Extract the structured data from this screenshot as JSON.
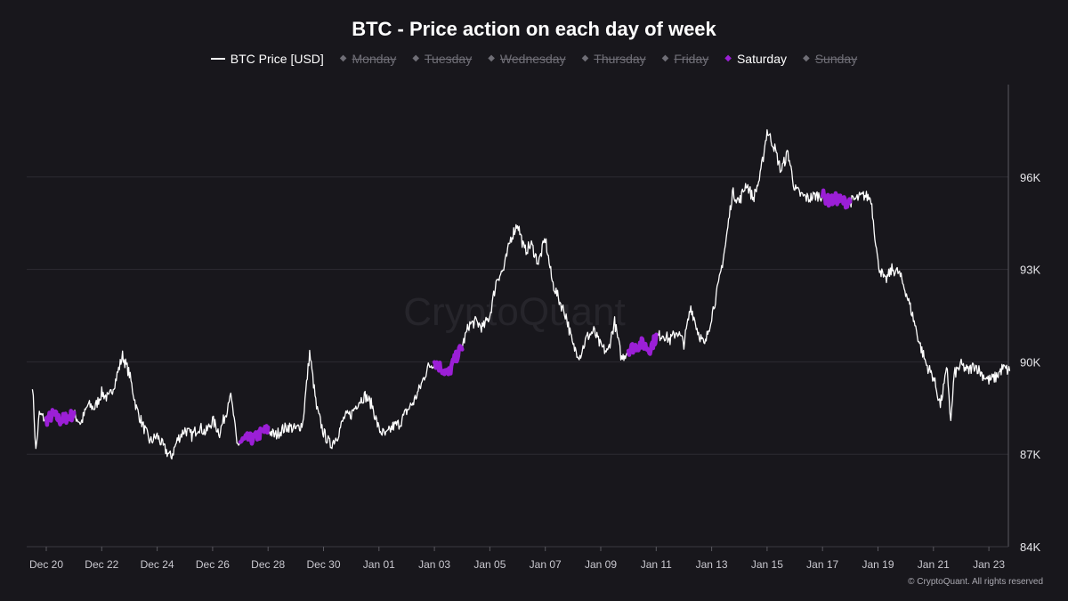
{
  "chart_data": {
    "type": "line",
    "title": "BTC - Price action on each day of week",
    "legend": [
      {
        "name": "BTC Price [USD]",
        "marker": "line",
        "color": "#ffffff",
        "active": true
      },
      {
        "name": "Monday",
        "marker": "dot",
        "color": "#6f6e76",
        "active": false
      },
      {
        "name": "Tuesday",
        "marker": "dot",
        "color": "#6f6e76",
        "active": false
      },
      {
        "name": "Wednesday",
        "marker": "dot",
        "color": "#6f6e76",
        "active": false
      },
      {
        "name": "Thursday",
        "marker": "dot",
        "color": "#6f6e76",
        "active": false
      },
      {
        "name": "Friday",
        "marker": "dot",
        "color": "#6f6e76",
        "active": false
      },
      {
        "name": "Saturday",
        "marker": "dot",
        "color": "#9b1fd6",
        "active": true
      },
      {
        "name": "Sunday",
        "marker": "dot",
        "color": "#6f6e76",
        "active": false
      }
    ],
    "legend_placement": "top-center",
    "x_tick_labels": [
      "Dec 20",
      "Dec 22",
      "Dec 24",
      "Dec 26",
      "Dec 28",
      "Dec 30",
      "Jan 01",
      "Jan 03",
      "Jan 05",
      "Jan 07",
      "Jan 09",
      "Jan 11",
      "Jan 13",
      "Jan 15",
      "Jan 17",
      "Jan 19",
      "Jan 21",
      "Jan 23"
    ],
    "y_tick_labels": [
      "84K",
      "87K",
      "90K",
      "93K",
      "96K"
    ],
    "ylim": [
      84000,
      99000
    ],
    "y_ticks": [
      84000,
      87000,
      90000,
      93000,
      96000
    ],
    "grid": "horizontal",
    "series": [
      {
        "name": "BTC Price [USD]",
        "color": "#ffffff",
        "points": [
          [
            "2025-12-19 12:00",
            89300
          ],
          [
            "2025-12-19 15:00",
            87100
          ],
          [
            "2025-12-19 18:00",
            88300
          ],
          [
            "2025-12-19 21:00",
            88200
          ],
          [
            "2025-12-20 00:00",
            88100
          ],
          [
            "2025-12-20 06:00",
            88300
          ],
          [
            "2025-12-20 12:00",
            88100
          ],
          [
            "2025-12-20 18:00",
            88200
          ],
          [
            "2025-12-21 00:00",
            88300
          ],
          [
            "2025-12-21 06:00",
            88000
          ],
          [
            "2025-12-21 12:00",
            88600
          ],
          [
            "2025-12-21 18:00",
            88500
          ],
          [
            "2025-12-22 00:00",
            89000
          ],
          [
            "2025-12-22 06:00",
            88800
          ],
          [
            "2025-12-22 12:00",
            89400
          ],
          [
            "2025-12-22 18:00",
            90200
          ],
          [
            "2025-12-23 00:00",
            89600
          ],
          [
            "2025-12-23 06:00",
            88500
          ],
          [
            "2025-12-23 12:00",
            87900
          ],
          [
            "2025-12-23 18:00",
            87400
          ],
          [
            "2025-12-24 00:00",
            87600
          ],
          [
            "2025-12-24 06:00",
            87200
          ],
          [
            "2025-12-24 12:00",
            86900
          ],
          [
            "2025-12-24 18:00",
            87500
          ],
          [
            "2025-12-25 00:00",
            87800
          ],
          [
            "2025-12-25 06:00",
            87600
          ],
          [
            "2025-12-25 12:00",
            87900
          ],
          [
            "2025-12-25 18:00",
            87700
          ],
          [
            "2025-12-26 00:00",
            88100
          ],
          [
            "2025-12-26 06:00",
            87700
          ],
          [
            "2025-12-26 12:00",
            88400
          ],
          [
            "2025-12-26 15:00",
            89000
          ],
          [
            "2025-12-26 18:00",
            88300
          ],
          [
            "2025-12-26 21:00",
            87300
          ],
          [
            "2025-12-27 00:00",
            87400
          ],
          [
            "2025-12-27 06:00",
            87500
          ],
          [
            "2025-12-27 12:00",
            87500
          ],
          [
            "2025-12-27 18:00",
            87700
          ],
          [
            "2025-12-28 00:00",
            87800
          ],
          [
            "2025-12-28 06:00",
            87600
          ],
          [
            "2025-12-28 12:00",
            87800
          ],
          [
            "2025-12-28 18:00",
            87900
          ],
          [
            "2025-12-29 00:00",
            87800
          ],
          [
            "2025-12-29 06:00",
            88000
          ],
          [
            "2025-12-29 12:00",
            90300
          ],
          [
            "2025-12-29 18:00",
            88500
          ],
          [
            "2025-12-30 00:00",
            87700
          ],
          [
            "2025-12-30 06:00",
            87300
          ],
          [
            "2025-12-30 12:00",
            87600
          ],
          [
            "2025-12-30 18:00",
            88200
          ],
          [
            "2025-12-31 00:00",
            88300
          ],
          [
            "2025-12-31 06:00",
            88700
          ],
          [
            "2025-12-31 12:00",
            88900
          ],
          [
            "2025-12-31 18:00",
            88600
          ],
          [
            "2026-01-01 00:00",
            87800
          ],
          [
            "2026-01-01 06:00",
            87600
          ],
          [
            "2026-01-01 12:00",
            87900
          ],
          [
            "2026-01-01 18:00",
            88000
          ],
          [
            "2026-01-02 00:00",
            88400
          ],
          [
            "2026-01-02 06:00",
            88700
          ],
          [
            "2026-01-02 12:00",
            89200
          ],
          [
            "2026-01-02 18:00",
            89800
          ],
          [
            "2026-01-03 00:00",
            90000
          ],
          [
            "2026-01-03 06:00",
            89800
          ],
          [
            "2026-01-03 12:00",
            89600
          ],
          [
            "2026-01-03 18:00",
            90100
          ],
          [
            "2026-01-04 00:00",
            90500
          ],
          [
            "2026-01-04 06:00",
            91200
          ],
          [
            "2026-01-04 12:00",
            91300
          ],
          [
            "2026-01-04 18:00",
            91100
          ],
          [
            "2026-01-05 00:00",
            91500
          ],
          [
            "2026-01-05 06:00",
            92700
          ],
          [
            "2026-01-05 12:00",
            93000
          ],
          [
            "2026-01-05 18:00",
            94000
          ],
          [
            "2026-01-06 00:00",
            94500
          ],
          [
            "2026-01-06 06:00",
            93600
          ],
          [
            "2026-01-06 12:00",
            93800
          ],
          [
            "2026-01-06 18:00",
            93200
          ],
          [
            "2026-01-07 00:00",
            94000
          ],
          [
            "2026-01-07 06:00",
            92600
          ],
          [
            "2026-01-07 12:00",
            92000
          ],
          [
            "2026-01-07 18:00",
            91500
          ],
          [
            "2026-01-08 00:00",
            90500
          ],
          [
            "2026-01-08 06:00",
            90200
          ],
          [
            "2026-01-08 12:00",
            90800
          ],
          [
            "2026-01-08 18:00",
            91000
          ],
          [
            "2026-01-09 00:00",
            90500
          ],
          [
            "2026-01-09 06:00",
            90300
          ],
          [
            "2026-01-09 12:00",
            91300
          ],
          [
            "2026-01-09 18:00",
            90100
          ],
          [
            "2026-01-10 00:00",
            90400
          ],
          [
            "2026-01-10 06:00",
            90500
          ],
          [
            "2026-01-10 12:00",
            90600
          ],
          [
            "2026-01-10 18:00",
            90400
          ],
          [
            "2026-01-11 00:00",
            90800
          ],
          [
            "2026-01-11 06:00",
            90900
          ],
          [
            "2026-01-11 12:00",
            90700
          ],
          [
            "2026-01-11 18:00",
            91000
          ],
          [
            "2026-01-12 00:00",
            90600
          ],
          [
            "2026-01-12 06:00",
            91800
          ],
          [
            "2026-01-12 12:00",
            91000
          ],
          [
            "2026-01-12 18:00",
            90500
          ],
          [
            "2026-01-13 00:00",
            91500
          ],
          [
            "2026-01-13 06:00",
            92500
          ],
          [
            "2026-01-13 12:00",
            93800
          ],
          [
            "2026-01-13 18:00",
            95500
          ],
          [
            "2026-01-14 00:00",
            95200
          ],
          [
            "2026-01-14 06:00",
            95800
          ],
          [
            "2026-01-14 12:00",
            95300
          ],
          [
            "2026-01-14 18:00",
            96000
          ],
          [
            "2026-01-15 00:00",
            97500
          ],
          [
            "2026-01-15 06:00",
            97000
          ],
          [
            "2026-01-15 12:00",
            96200
          ],
          [
            "2026-01-15 18:00",
            96800
          ],
          [
            "2026-01-16 00:00",
            95600
          ],
          [
            "2026-01-16 06:00",
            95400
          ],
          [
            "2026-01-16 12:00",
            95300
          ],
          [
            "2026-01-16 18:00",
            95400
          ],
          [
            "2026-01-17 00:00",
            95400
          ],
          [
            "2026-01-17 06:00",
            95200
          ],
          [
            "2026-01-17 12:00",
            95300
          ],
          [
            "2026-01-17 18:00",
            95200
          ],
          [
            "2026-01-18 00:00",
            95200
          ],
          [
            "2026-01-18 06:00",
            95300
          ],
          [
            "2026-01-18 12:00",
            95400
          ],
          [
            "2026-01-18 18:00",
            95300
          ],
          [
            "2026-01-19 00:00",
            93200
          ],
          [
            "2026-01-19 06:00",
            92600
          ],
          [
            "2026-01-19 12:00",
            93000
          ],
          [
            "2026-01-19 18:00",
            92900
          ],
          [
            "2026-01-20 00:00",
            92300
          ],
          [
            "2026-01-20 06:00",
            91500
          ],
          [
            "2026-01-20 12:00",
            90600
          ],
          [
            "2026-01-20 18:00",
            89900
          ],
          [
            "2026-01-21 00:00",
            89500
          ],
          [
            "2026-01-21 06:00",
            88600
          ],
          [
            "2026-01-21 12:00",
            89800
          ],
          [
            "2026-01-21 15:00",
            88000
          ],
          [
            "2026-01-21 18:00",
            89600
          ],
          [
            "2026-01-22 00:00",
            89900
          ],
          [
            "2026-01-22 06:00",
            89700
          ],
          [
            "2026-01-22 12:00",
            89900
          ],
          [
            "2026-01-22 18:00",
            89600
          ],
          [
            "2026-01-23 00:00",
            89400
          ],
          [
            "2026-01-23 06:00",
            89500
          ],
          [
            "2026-01-23 12:00",
            89800
          ],
          [
            "2026-01-23 18:00",
            89700
          ]
        ]
      },
      {
        "name": "Saturday",
        "color": "#9b1fd6",
        "segments": [
          {
            "from": "2025-12-20 00:00",
            "to": "2025-12-21 00:00"
          },
          {
            "from": "2025-12-27 00:00",
            "to": "2025-12-28 00:00"
          },
          {
            "from": "2026-01-03 00:00",
            "to": "2026-01-04 00:00"
          },
          {
            "from": "2026-01-10 00:00",
            "to": "2026-01-11 00:00"
          },
          {
            "from": "2026-01-17 00:00",
            "to": "2026-01-18 00:00"
          }
        ]
      }
    ]
  },
  "footer": {
    "copyright": "© CryptoQuant. All rights reserved"
  },
  "watermark": "CryptoQuant",
  "colors": {
    "background": "#18171c",
    "grid": "#2c2b32",
    "price_line": "#ffffff",
    "saturday": "#9b1fd6",
    "inactive": "#6f6e76"
  }
}
